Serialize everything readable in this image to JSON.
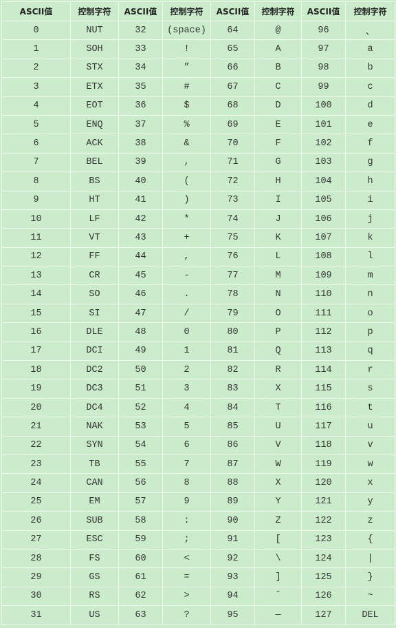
{
  "headers": [
    "ASCII值",
    "控制字符",
    "ASCII值",
    "控制字符",
    "ASCII值",
    "控制字符",
    "ASCII值",
    "控制字符"
  ],
  "rows": [
    [
      "0",
      "NUT",
      "32",
      "(space)",
      "64",
      "@",
      "96",
      "、"
    ],
    [
      "1",
      "SOH",
      "33",
      "!",
      "65",
      "A",
      "97",
      "a"
    ],
    [
      "2",
      "STX",
      "34",
      "”",
      "66",
      "B",
      "98",
      "b"
    ],
    [
      "3",
      "ETX",
      "35",
      "#",
      "67",
      "C",
      "99",
      "c"
    ],
    [
      "4",
      "EOT",
      "36",
      "$",
      "68",
      "D",
      "100",
      "d"
    ],
    [
      "5",
      "ENQ",
      "37",
      "%",
      "69",
      "E",
      "101",
      "e"
    ],
    [
      "6",
      "ACK",
      "38",
      "&",
      "70",
      "F",
      "102",
      "f"
    ],
    [
      "7",
      "BEL",
      "39",
      ",",
      "71",
      "G",
      "103",
      "g"
    ],
    [
      "8",
      "BS",
      "40",
      "(",
      "72",
      "H",
      "104",
      "h"
    ],
    [
      "9",
      "HT",
      "41",
      ")",
      "73",
      "I",
      "105",
      "i"
    ],
    [
      "10",
      "LF",
      "42",
      "*",
      "74",
      "J",
      "106",
      "j"
    ],
    [
      "11",
      "VT",
      "43",
      "+",
      "75",
      "K",
      "107",
      "k"
    ],
    [
      "12",
      "FF",
      "44",
      ",",
      "76",
      "L",
      "108",
      "l"
    ],
    [
      "13",
      "CR",
      "45",
      "-",
      "77",
      "M",
      "109",
      "m"
    ],
    [
      "14",
      "SO",
      "46",
      ".",
      "78",
      "N",
      "110",
      "n"
    ],
    [
      "15",
      "SI",
      "47",
      "/",
      "79",
      "O",
      "111",
      "o"
    ],
    [
      "16",
      "DLE",
      "48",
      "0",
      "80",
      "P",
      "112",
      "p"
    ],
    [
      "17",
      "DCI",
      "49",
      "1",
      "81",
      "Q",
      "113",
      "q"
    ],
    [
      "18",
      "DC2",
      "50",
      "2",
      "82",
      "R",
      "114",
      "r"
    ],
    [
      "19",
      "DC3",
      "51",
      "3",
      "83",
      "X",
      "115",
      "s"
    ],
    [
      "20",
      "DC4",
      "52",
      "4",
      "84",
      "T",
      "116",
      "t"
    ],
    [
      "21",
      "NAK",
      "53",
      "5",
      "85",
      "U",
      "117",
      "u"
    ],
    [
      "22",
      "SYN",
      "54",
      "6",
      "86",
      "V",
      "118",
      "v"
    ],
    [
      "23",
      "TB",
      "55",
      "7",
      "87",
      "W",
      "119",
      "w"
    ],
    [
      "24",
      "CAN",
      "56",
      "8",
      "88",
      "X",
      "120",
      "x"
    ],
    [
      "25",
      "EM",
      "57",
      "9",
      "89",
      "Y",
      "121",
      "y"
    ],
    [
      "26",
      "SUB",
      "58",
      ":",
      "90",
      "Z",
      "122",
      "z"
    ],
    [
      "27",
      "ESC",
      "59",
      ";",
      "91",
      "[",
      "123",
      "{"
    ],
    [
      "28",
      "FS",
      "60",
      "<",
      "92",
      "\\",
      "124",
      "|"
    ],
    [
      "29",
      "GS",
      "61",
      "=",
      "93",
      "]",
      "125",
      "}"
    ],
    [
      "30",
      "RS",
      "62",
      ">",
      "94",
      "ˆ",
      "126",
      "~"
    ],
    [
      "31",
      "US",
      "63",
      "?",
      "95",
      "—",
      "127",
      "DEL"
    ]
  ]
}
